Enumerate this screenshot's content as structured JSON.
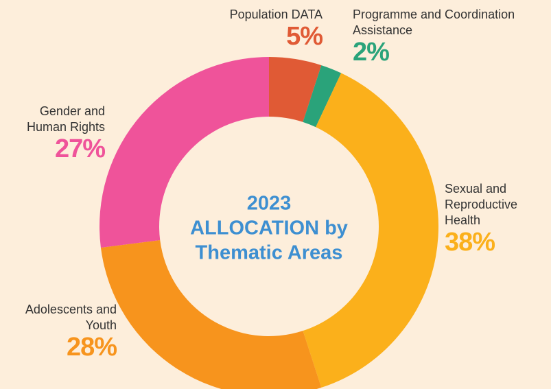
{
  "chart_data": {
    "type": "donut",
    "title": [
      "2023",
      "ALLOCATION by",
      "Thematic Areas"
    ],
    "categories": [
      "Population DATA",
      "Programme and Coordination Assistance",
      "Sexual and Reproductive Health",
      "Adolescents and Youth",
      "Gender and Human Rights"
    ],
    "values": [
      5,
      2,
      38,
      28,
      27
    ],
    "value_labels": [
      "5%",
      "2%",
      "38%",
      "28%",
      "27%"
    ],
    "colors": [
      "#e05a35",
      "#2aa37a",
      "#fbb01b",
      "#f7941d",
      "#ef539a"
    ]
  }
}
